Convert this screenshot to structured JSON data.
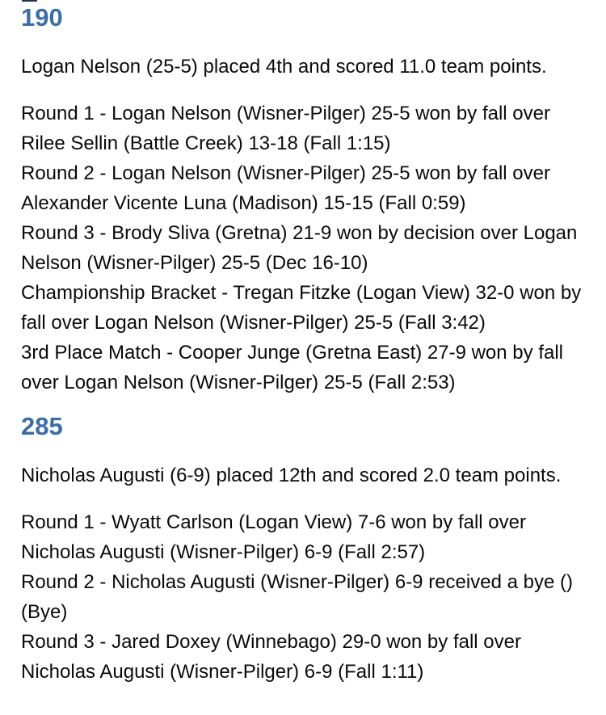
{
  "page": {
    "background_color": "#ffffff",
    "text_color": "#0a0a0a",
    "heading_color": "#3b6ea8",
    "clipped_fragment_color": "#22344e"
  },
  "sections": [
    {
      "weight_class": "190",
      "summary": "Logan Nelson (25-5) placed 4th and scored 11.0 team points.",
      "matches": [
        {
          "lines": [
            "Round 1 - Logan Nelson (Wisner-Pilger) 25-5 won by fall over",
            "Rilee Sellin (Battle Creek) 13-18 (Fall 1:15)"
          ]
        },
        {
          "lines": [
            "Round 2 - Logan Nelson (Wisner-Pilger) 25-5 won by fall over",
            "Alexander Vicente Luna (Madison) 15-15 (Fall 0:59)"
          ]
        },
        {
          "lines": [
            "Round 3 - Brody Sliva (Gretna) 21-9 won by decision over Logan",
            "Nelson (Wisner-Pilger) 25-5 (Dec 16-10)"
          ]
        },
        {
          "lines": [
            "Championship Bracket - Tregan Fitzke (Logan View) 32-0 won by",
            "fall over Logan Nelson (Wisner-Pilger) 25-5 (Fall 3:42)"
          ]
        },
        {
          "lines": [
            "3rd Place Match - Cooper Junge (Gretna East) 27-9 won by fall",
            "over Logan Nelson (Wisner-Pilger) 25-5 (Fall 2:53)"
          ]
        }
      ]
    },
    {
      "weight_class": "285",
      "summary": "Nicholas Augusti (6-9) placed 12th and scored 2.0 team points.",
      "matches": [
        {
          "lines": [
            "Round 1 - Wyatt Carlson (Logan View) 7-6 won by fall over",
            "Nicholas Augusti (Wisner-Pilger) 6-9 (Fall 2:57)"
          ]
        },
        {
          "lines": [
            "Round 2 - Nicholas Augusti (Wisner-Pilger) 6-9 received a bye ()",
            "(Bye)"
          ]
        },
        {
          "lines": [
            "Round 3 - Jared Doxey (Winnebago) 29-0 won by fall over",
            "Nicholas Augusti (Wisner-Pilger) 6-9 (Fall 1:11)"
          ]
        }
      ]
    }
  ]
}
